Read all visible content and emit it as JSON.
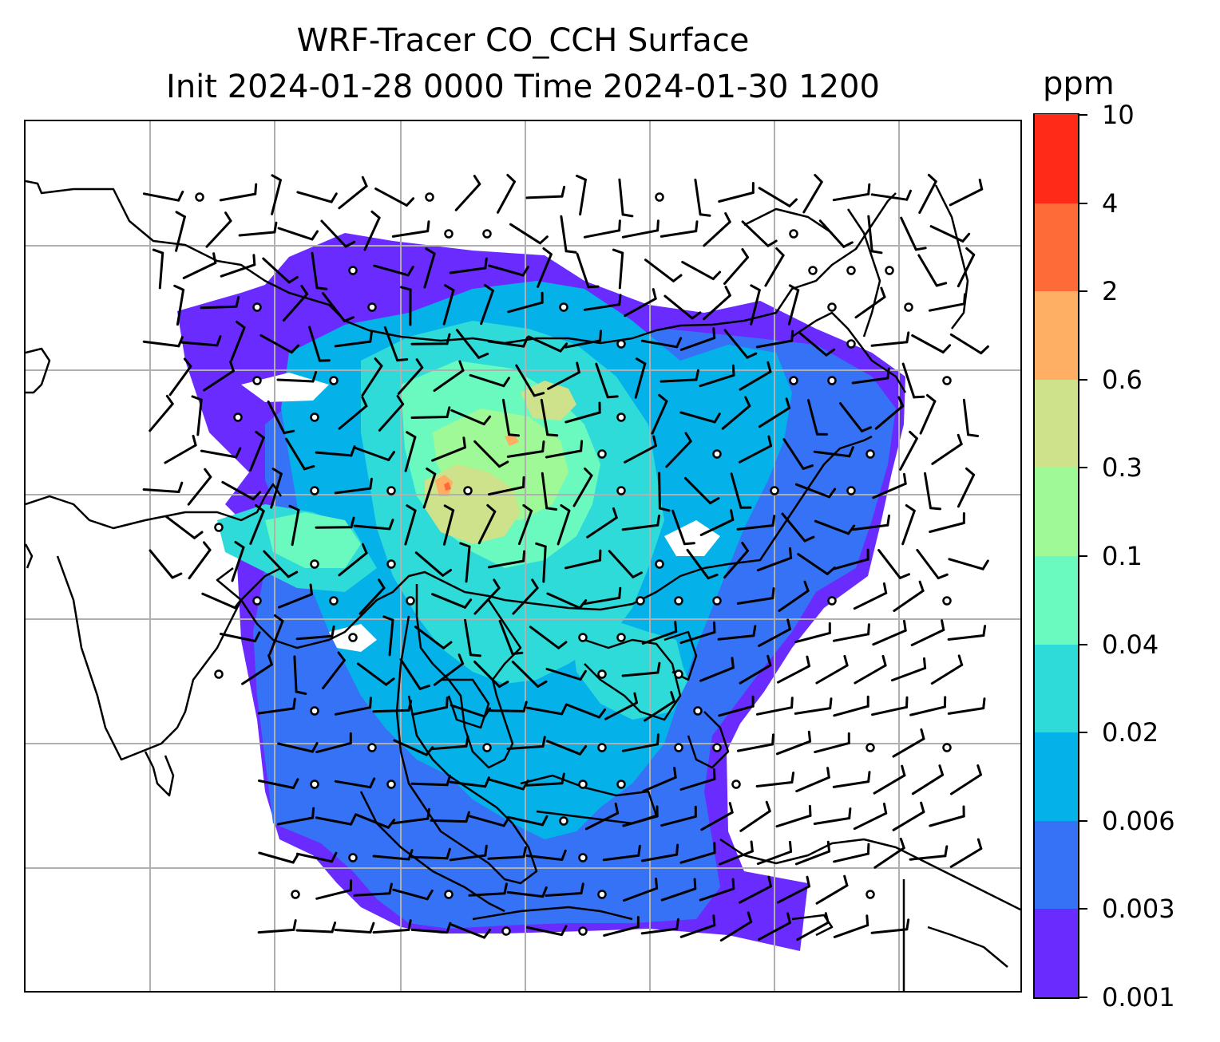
{
  "title": {
    "line1": "WRF-Tracer CO_CCH Surface",
    "line2": "Init 2024-01-28 0000 Time 2024-01-30 1200"
  },
  "colorbar": {
    "unit": "ppm",
    "levels": [
      "0.001",
      "0.003",
      "0.006",
      "0.02",
      "0.04",
      "0.1",
      "0.3",
      "0.6",
      "2",
      "4",
      "10"
    ],
    "colors": [
      "#6a2bff",
      "#3672f5",
      "#04b1e9",
      "#2edbd8",
      "#6afac0",
      "#9ef996",
      "#cde28a",
      "#feaf63",
      "#ff6b38",
      "#ff2a17"
    ]
  },
  "map": {
    "gridlines": true,
    "field": "CO_CCH tracer concentration with surface wind barbs",
    "region": "South and Southeast Asia, China, Indonesia"
  }
}
